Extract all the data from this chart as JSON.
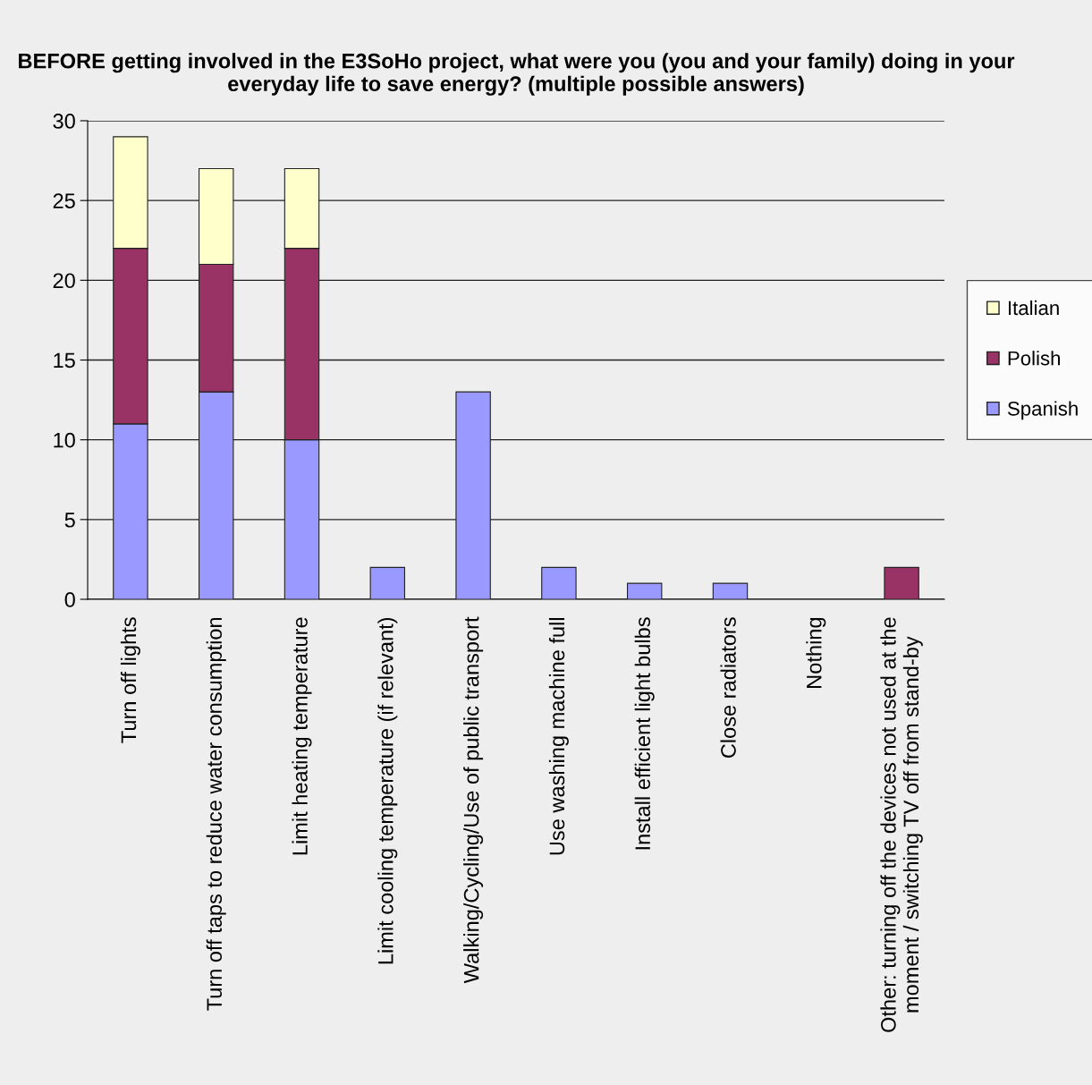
{
  "chart_data": {
    "type": "bar",
    "stacked": true,
    "title": "BEFORE getting involved in the E3SoHo project, what were you (you and your family) doing in your everyday life to save energy? (multiple possible answers)",
    "categories": [
      "Turn off lights",
      "Turn off taps to reduce water consumption",
      "Limit heating temperature",
      "Limit cooling temperature (if relevant)",
      "Walking/Cycling/Use of public transport",
      "Use washing machine full",
      "Install efficient light bulbs",
      "Close radiators",
      "Nothing",
      "Other: turning off the devices not used at the\nmoment / switching TV off from stand-by"
    ],
    "series": [
      {
        "name": "Spanish",
        "color": "#9999ff",
        "values": [
          11,
          13,
          10,
          2,
          13,
          2,
          1,
          1,
          0,
          0
        ]
      },
      {
        "name": "Polish",
        "color": "#993366",
        "values": [
          11,
          8,
          12,
          0,
          0,
          0,
          0,
          0,
          0,
          2
        ]
      },
      {
        "name": "Italian",
        "color": "#ffffcc",
        "values": [
          7,
          6,
          5,
          0,
          0,
          0,
          0,
          0,
          0,
          0
        ]
      }
    ],
    "ylim": [
      0,
      30
    ],
    "yticks": [
      0,
      5,
      10,
      15,
      20,
      25,
      30
    ],
    "grid": "y",
    "legend": "right"
  }
}
